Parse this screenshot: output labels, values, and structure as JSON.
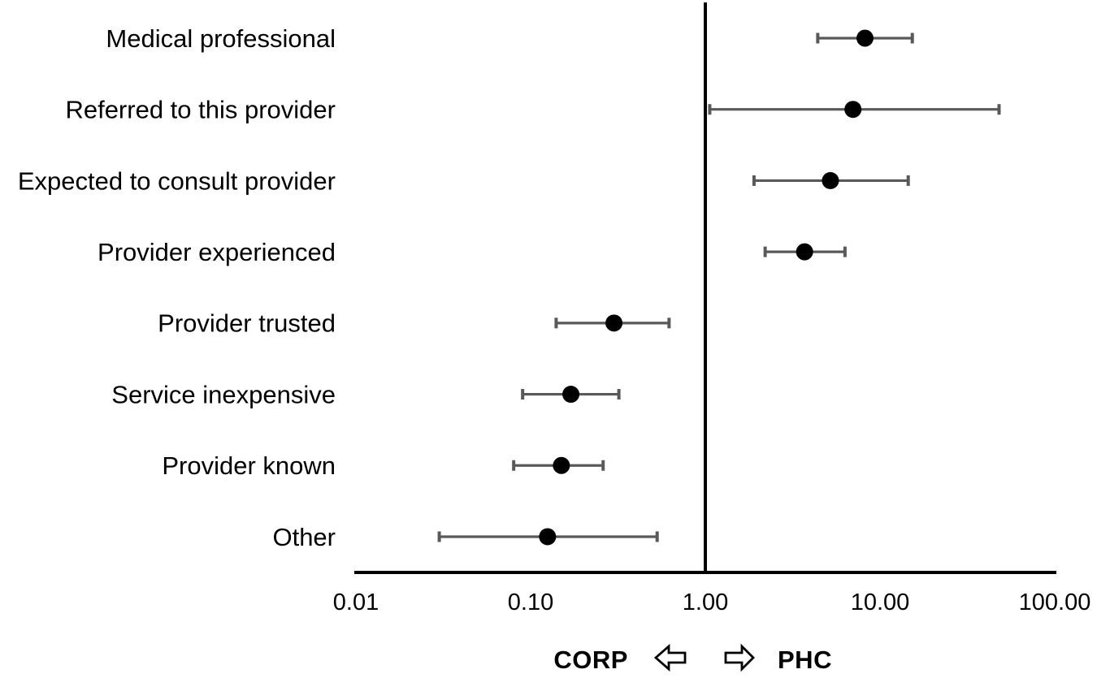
{
  "chart_data": {
    "type": "scatter",
    "subtype": "forest-plot",
    "title": "",
    "x_scale": "log",
    "xlim": [
      0.01,
      100
    ],
    "reference_line": 1.0,
    "grid": false,
    "x_ticks": [
      "0.01",
      "0.10",
      "1.00",
      "10.00",
      "100.00"
    ],
    "x_tick_values": [
      0.01,
      0.1,
      1,
      10,
      100
    ],
    "categories": [
      "Medical professional",
      "Referred to this provider",
      "Expected to consult provider",
      "Provider experienced",
      "Provider trusted",
      "Service inexpensive",
      "Provider known",
      "Other"
    ],
    "points": [
      {
        "label": "Medical professional",
        "or": 8.2,
        "ci_low": 4.4,
        "ci_high": 15.3
      },
      {
        "label": "Referred to this provider",
        "or": 7.0,
        "ci_low": 1.06,
        "ci_high": 48.0
      },
      {
        "label": "Expected to consult provider",
        "or": 5.2,
        "ci_low": 1.9,
        "ci_high": 14.5
      },
      {
        "label": "Provider experienced",
        "or": 3.7,
        "ci_low": 2.2,
        "ci_high": 6.3
      },
      {
        "label": "Provider trusted",
        "or": 0.3,
        "ci_low": 0.14,
        "ci_high": 0.62
      },
      {
        "label": "Service inexpensive",
        "or": 0.17,
        "ci_low": 0.09,
        "ci_high": 0.32
      },
      {
        "label": "Provider known",
        "or": 0.15,
        "ci_low": 0.08,
        "ci_high": 0.26
      },
      {
        "label": "Other",
        "or": 0.125,
        "ci_low": 0.03,
        "ci_high": 0.53
      }
    ],
    "footer": {
      "left_label": "CORP",
      "right_label": "PHC",
      "left_arrow_icon": "leftwards-white-arrow",
      "right_arrow_icon": "rightwards-white-arrow"
    },
    "colors": {
      "point": "#000000",
      "error_bar": "#595959",
      "axis": "#000000",
      "background": "#ffffff"
    }
  }
}
